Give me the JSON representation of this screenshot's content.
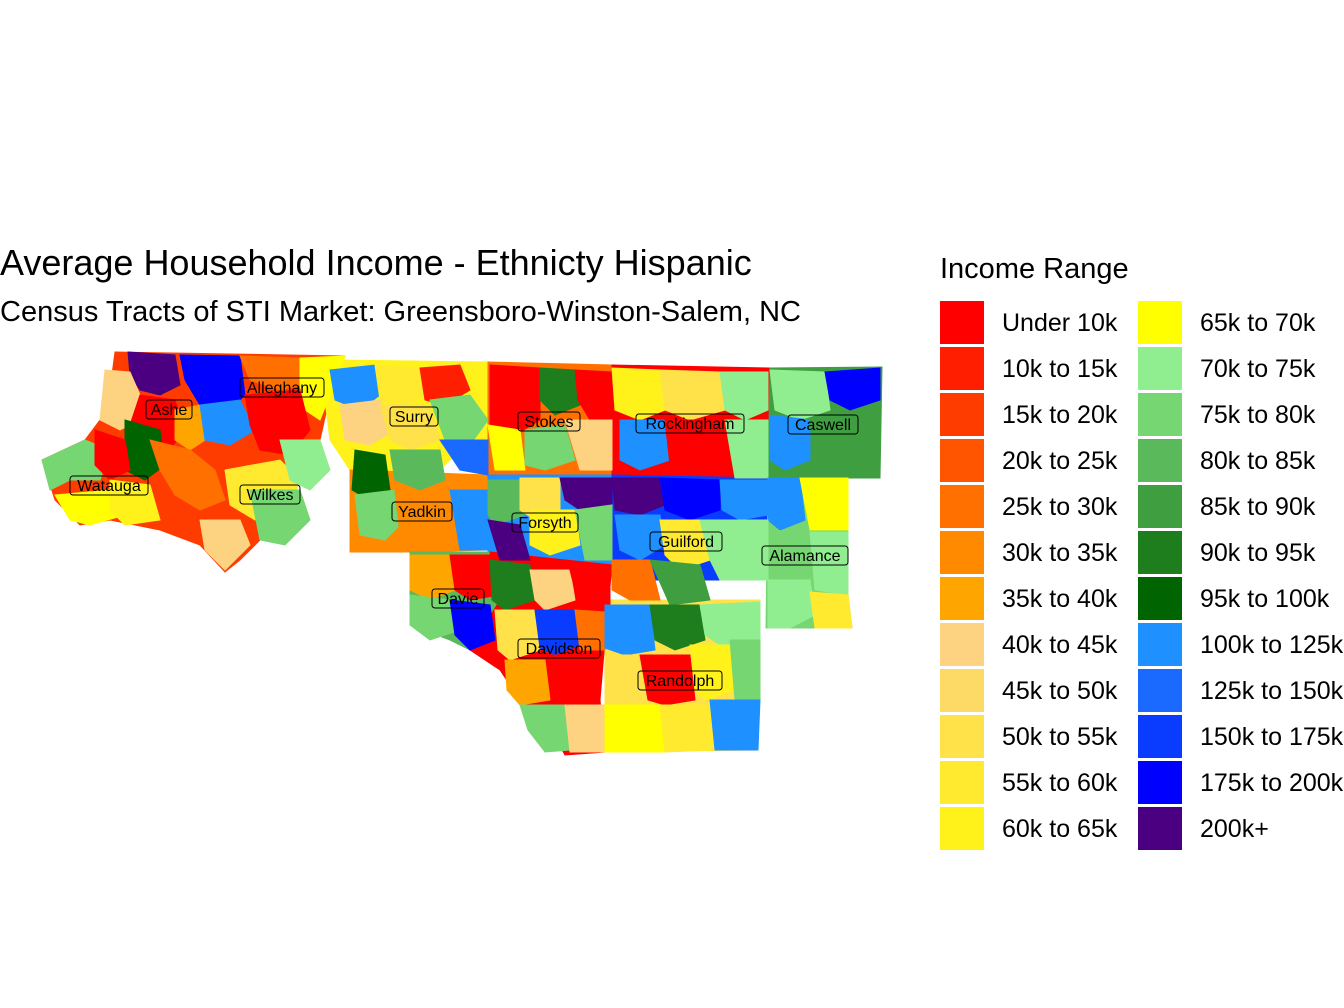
{
  "title": "Average Household Income - Ethnicty Hispanic",
  "subtitle": "Census Tracts of STI Market: Greensboro-Winston-Salem, NC",
  "legend": {
    "title": "Income Range",
    "items": [
      {
        "label": "Under 10k",
        "color": "#FF0000"
      },
      {
        "label": "10k to 15k",
        "color": "#FF1E00"
      },
      {
        "label": "15k to 20k",
        "color": "#FF3C00"
      },
      {
        "label": "20k to 25k",
        "color": "#FF5500"
      },
      {
        "label": "25k to 30k",
        "color": "#FF7000"
      },
      {
        "label": "30k to 35k",
        "color": "#FF8A00"
      },
      {
        "label": "35k to 40k",
        "color": "#FFA500"
      },
      {
        "label": "40k to 45k",
        "color": "#FDD280"
      },
      {
        "label": "45k to 50k",
        "color": "#FDDA66"
      },
      {
        "label": "50k to 55k",
        "color": "#FFE24A"
      },
      {
        "label": "55k to 60k",
        "color": "#FFEA30"
      },
      {
        "label": "60k to 65k",
        "color": "#FFF21A"
      },
      {
        "label": "65k to 70k",
        "color": "#FFFF00"
      },
      {
        "label": "70k to 75k",
        "color": "#90EE90"
      },
      {
        "label": "75k to 80k",
        "color": "#76D672"
      },
      {
        "label": "80k to 85k",
        "color": "#5AB95A"
      },
      {
        "label": "85k to 90k",
        "color": "#3E9E40"
      },
      {
        "label": "90k to 95k",
        "color": "#1E7E1E"
      },
      {
        "label": "95k to 100k",
        "color": "#006400"
      },
      {
        "label": "100k to 125k",
        "color": "#1E90FF"
      },
      {
        "label": "125k to 150k",
        "color": "#1A6AFF"
      },
      {
        "label": "150k to 175k",
        "color": "#0A3CFF"
      },
      {
        "label": "175k to 200k",
        "color": "#0000FF"
      },
      {
        "label": "200k+",
        "color": "#4B0082"
      }
    ]
  },
  "counties": [
    {
      "name": "Alleghany"
    },
    {
      "name": "Ashe"
    },
    {
      "name": "Surry"
    },
    {
      "name": "Stokes"
    },
    {
      "name": "Rockingham"
    },
    {
      "name": "Caswell"
    },
    {
      "name": "Watauga"
    },
    {
      "name": "Wilkes"
    },
    {
      "name": "Yadkin"
    },
    {
      "name": "Forsyth"
    },
    {
      "name": "Guilford"
    },
    {
      "name": "Alamance"
    },
    {
      "name": "Davie"
    },
    {
      "name": "Davidson"
    },
    {
      "name": "Randolph"
    }
  ]
}
